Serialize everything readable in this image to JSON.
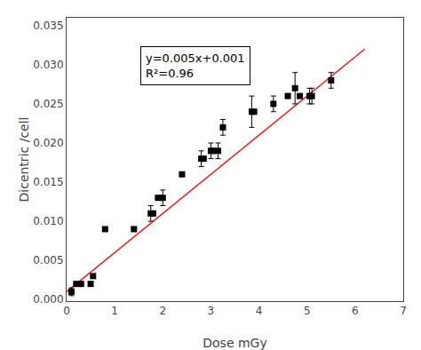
{
  "chart_data": {
    "type": "scatter",
    "xlabel": "Dose mGy",
    "ylabel": "Dicentric /cell",
    "xlim": [
      0,
      7
    ],
    "ylim": [
      -0.0002,
      0.036
    ],
    "xticks": [
      0,
      1,
      2,
      3,
      4,
      5,
      6,
      7
    ],
    "yticks": [
      {
        "value": 0.0,
        "label": "0.000"
      },
      {
        "value": 0.005,
        "label": "0.005"
      },
      {
        "value": 0.01,
        "label": "0.010"
      },
      {
        "value": 0.015,
        "label": "0.015"
      },
      {
        "value": 0.02,
        "label": "0.020"
      },
      {
        "value": 0.025,
        "label": "0.025"
      },
      {
        "value": 0.03,
        "label": "0.030"
      },
      {
        "value": 0.035,
        "label": "0.035"
      }
    ],
    "grid": false,
    "annotation": [
      "y=0.005x+0.001",
      "R²=0.96"
    ],
    "series": [
      {
        "type": "line",
        "line_style": "solid",
        "color": "#ee1111",
        "x": [
          0.0,
          6.2
        ],
        "values": [
          0.001,
          0.032
        ]
      },
      {
        "type": "scatter",
        "marker": "square",
        "color": "black",
        "x": [
          0.1,
          0.2,
          0.3,
          0.5,
          0.55,
          0.8,
          1.4,
          1.75,
          1.8,
          1.9,
          2.0,
          2.4,
          2.8,
          2.85,
          3.0,
          3.05,
          3.15,
          3.25,
          3.85,
          3.9,
          4.3,
          4.6,
          4.75,
          4.85,
          5.05,
          5.1,
          5.5
        ],
        "values": [
          0.001,
          0.002,
          0.002,
          0.002,
          0.003,
          0.009,
          0.009,
          0.011,
          0.011,
          0.013,
          0.013,
          0.016,
          0.018,
          0.018,
          0.019,
          0.019,
          0.019,
          0.022,
          0.024,
          0.024,
          0.025,
          0.026,
          0.027,
          0.026,
          0.026,
          0.026,
          0.028
        ],
        "errors": [
          0.0005,
          0.0,
          0.0,
          0.0,
          0.0,
          0.0,
          0.0,
          0.001,
          0.0,
          0.0,
          0.001,
          0.0,
          0.001,
          0.0,
          0.001,
          0.0,
          0.001,
          0.001,
          0.002,
          0.0,
          0.001,
          0.0,
          0.002,
          0.0,
          0.001,
          0.001,
          0.001
        ]
      }
    ]
  }
}
